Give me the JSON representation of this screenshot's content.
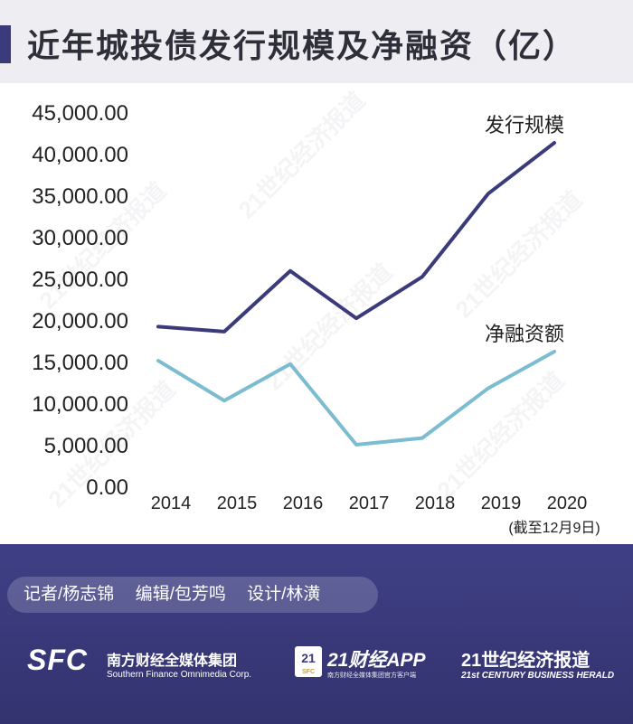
{
  "header": {
    "title": "近年城投债发行规模及净融资（亿）"
  },
  "chart_data": {
    "type": "line",
    "categories": [
      "2014",
      "2015",
      "2016",
      "2017",
      "2018",
      "2019",
      "2020"
    ],
    "x_note": "(截至12月9日)",
    "ylim": [
      0,
      45000
    ],
    "yticks": [
      "0.00",
      "5,000.00",
      "10,000.00",
      "15,000.00",
      "20,000.00",
      "25,000.00",
      "30,000.00",
      "35,000.00",
      "40,000.00",
      "45,000.00"
    ],
    "grid": false,
    "series": [
      {
        "name": "发行规模",
        "color": "#3b3a7a",
        "values": [
          19200,
          18600,
          25900,
          20200,
          25200,
          35200,
          41300
        ]
      },
      {
        "name": "净融资额",
        "color": "#7bbcd0",
        "values": [
          15100,
          10300,
          14700,
          5000,
          5800,
          11800,
          16200
        ]
      }
    ]
  },
  "watermark": "21世纪经济报道",
  "footer": {
    "credits": [
      "记者/杨志锦",
      "编辑/包芳鸣",
      "设计/林潢"
    ],
    "logo_sfc": "SFC",
    "logo_sfc_cn": "南方财经全媒体集团",
    "logo_sfc_en": "Southern Finance Omnimedia Corp.",
    "logo_21_badge": "21",
    "logo_21_badge_sub": "SFC",
    "logo_21_app": "21财经APP",
    "logo_21_app_sub": "南方财经全媒体集团官方客户端",
    "logo_herald_cn": "21世纪经济报道",
    "logo_herald_en": "21st CENTURY BUSINESS HERALD"
  }
}
